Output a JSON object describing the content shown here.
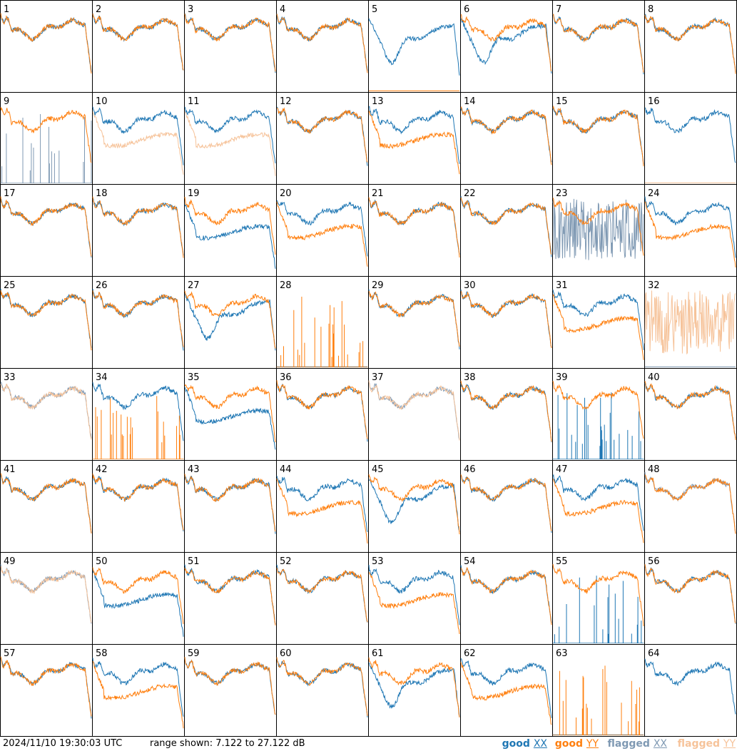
{
  "footer": {
    "timestamp": "2024/11/10 19:30:03 UTC",
    "range_text": "range shown: 7.122 to 27.122 dB"
  },
  "legend": [
    {
      "key": "good_xx",
      "label": "good",
      "pol": "XX",
      "color": "#1f77b4"
    },
    {
      "key": "good_yy",
      "label": "good",
      "pol": "YY",
      "color": "#ff7f0e"
    },
    {
      "key": "flagged_xx",
      "label": "flagged",
      "pol": "XX",
      "color": "#7f99b3"
    },
    {
      "key": "flagged_yy",
      "label": "flagged",
      "pol": "YY",
      "color": "#f6c39a"
    }
  ],
  "colors": {
    "good_xx": "#1f77b4",
    "good_yy": "#ff7f0e",
    "flagged_xx": "#7f99b3",
    "flagged_yy": "#f6c39a",
    "border": "#000000"
  },
  "chart_data": {
    "type": "line",
    "layout": "small-multiples 8x8",
    "ylim_db": [
      7.122,
      27.122
    ],
    "x": "frequency channel (unlabeled)",
    "panels": [
      {
        "id": "1",
        "xx": {
          "flag": "good",
          "shape": "std"
        },
        "yy": {
          "flag": "good",
          "shape": "std"
        }
      },
      {
        "id": "2",
        "xx": {
          "flag": "good",
          "shape": "std"
        },
        "yy": {
          "flag": "good",
          "shape": "std"
        }
      },
      {
        "id": "3",
        "xx": {
          "flag": "good",
          "shape": "std"
        },
        "yy": {
          "flag": "good",
          "shape": "std"
        }
      },
      {
        "id": "4",
        "xx": {
          "flag": "good",
          "shape": "std"
        },
        "yy": {
          "flag": "good",
          "shape": "std"
        }
      },
      {
        "id": "5",
        "xx": {
          "flag": "good",
          "shape": "dip"
        },
        "yy": {
          "flag": "good",
          "shape": "flat"
        }
      },
      {
        "id": "6",
        "xx": {
          "flag": "good",
          "shape": "dip"
        },
        "yy": {
          "flag": "good",
          "shape": "std"
        }
      },
      {
        "id": "7",
        "xx": {
          "flag": "good",
          "shape": "std"
        },
        "yy": {
          "flag": "good",
          "shape": "std"
        }
      },
      {
        "id": "8",
        "xx": {
          "flag": "good",
          "shape": "std"
        },
        "yy": {
          "flag": "good",
          "shape": "std"
        }
      },
      {
        "id": "9",
        "xx": {
          "flag": "flagged",
          "shape": "spikes"
        },
        "yy": {
          "flag": "good",
          "shape": "std"
        }
      },
      {
        "id": "10",
        "xx": {
          "flag": "good",
          "shape": "std"
        },
        "yy": {
          "flag": "flagged",
          "shape": "low"
        }
      },
      {
        "id": "11",
        "xx": {
          "flag": "good",
          "shape": "std"
        },
        "yy": {
          "flag": "flagged",
          "shape": "low"
        }
      },
      {
        "id": "12",
        "xx": {
          "flag": "good",
          "shape": "std"
        },
        "yy": {
          "flag": "good",
          "shape": "std"
        }
      },
      {
        "id": "13",
        "xx": {
          "flag": "good",
          "shape": "std"
        },
        "yy": {
          "flag": "good",
          "shape": "low"
        }
      },
      {
        "id": "14",
        "xx": {
          "flag": "good",
          "shape": "std"
        },
        "yy": {
          "flag": "good",
          "shape": "std"
        }
      },
      {
        "id": "15",
        "xx": {
          "flag": "good",
          "shape": "std"
        },
        "yy": {
          "flag": "good",
          "shape": "std"
        }
      },
      {
        "id": "16",
        "xx": {
          "flag": "good",
          "shape": "std"
        },
        "yy": {
          "flag": "flagged",
          "shape": "flat"
        }
      },
      {
        "id": "17",
        "xx": {
          "flag": "good",
          "shape": "std"
        },
        "yy": {
          "flag": "good",
          "shape": "std"
        }
      },
      {
        "id": "18",
        "xx": {
          "flag": "good",
          "shape": "std"
        },
        "yy": {
          "flag": "good",
          "shape": "std"
        }
      },
      {
        "id": "19",
        "xx": {
          "flag": "good",
          "shape": "low"
        },
        "yy": {
          "flag": "good",
          "shape": "std"
        }
      },
      {
        "id": "20",
        "xx": {
          "flag": "good",
          "shape": "std"
        },
        "yy": {
          "flag": "good",
          "shape": "low"
        }
      },
      {
        "id": "21",
        "xx": {
          "flag": "good",
          "shape": "std"
        },
        "yy": {
          "flag": "good",
          "shape": "std"
        }
      },
      {
        "id": "22",
        "xx": {
          "flag": "good",
          "shape": "std"
        },
        "yy": {
          "flag": "good",
          "shape": "std"
        }
      },
      {
        "id": "23",
        "xx": {
          "flag": "flagged",
          "shape": "noise"
        },
        "yy": {
          "flag": "good",
          "shape": "std"
        }
      },
      {
        "id": "24",
        "xx": {
          "flag": "good",
          "shape": "std"
        },
        "yy": {
          "flag": "good",
          "shape": "low"
        }
      },
      {
        "id": "25",
        "xx": {
          "flag": "good",
          "shape": "std"
        },
        "yy": {
          "flag": "good",
          "shape": "std"
        }
      },
      {
        "id": "26",
        "xx": {
          "flag": "good",
          "shape": "std"
        },
        "yy": {
          "flag": "good",
          "shape": "std"
        }
      },
      {
        "id": "27",
        "xx": {
          "flag": "good",
          "shape": "dip"
        },
        "yy": {
          "flag": "good",
          "shape": "std"
        }
      },
      {
        "id": "28",
        "xx": {
          "flag": "good",
          "shape": "flat"
        },
        "yy": {
          "flag": "good",
          "shape": "spikes"
        }
      },
      {
        "id": "29",
        "xx": {
          "flag": "good",
          "shape": "std"
        },
        "yy": {
          "flag": "good",
          "shape": "std"
        }
      },
      {
        "id": "30",
        "xx": {
          "flag": "good",
          "shape": "std"
        },
        "yy": {
          "flag": "good",
          "shape": "std"
        }
      },
      {
        "id": "31",
        "xx": {
          "flag": "good",
          "shape": "std"
        },
        "yy": {
          "flag": "good",
          "shape": "low"
        }
      },
      {
        "id": "32",
        "xx": {
          "flag": "flagged",
          "shape": "flat"
        },
        "yy": {
          "flag": "flagged",
          "shape": "noise"
        }
      },
      {
        "id": "33",
        "xx": {
          "flag": "flagged",
          "shape": "std"
        },
        "yy": {
          "flag": "flagged",
          "shape": "std"
        }
      },
      {
        "id": "34",
        "xx": {
          "flag": "good",
          "shape": "std"
        },
        "yy": {
          "flag": "good",
          "shape": "spikes"
        }
      },
      {
        "id": "35",
        "xx": {
          "flag": "good",
          "shape": "low"
        },
        "yy": {
          "flag": "good",
          "shape": "std"
        }
      },
      {
        "id": "36",
        "xx": {
          "flag": "good",
          "shape": "std"
        },
        "yy": {
          "flag": "good",
          "shape": "std"
        }
      },
      {
        "id": "37",
        "xx": {
          "flag": "flagged",
          "shape": "std"
        },
        "yy": {
          "flag": "flagged",
          "shape": "std"
        }
      },
      {
        "id": "38",
        "xx": {
          "flag": "good",
          "shape": "std"
        },
        "yy": {
          "flag": "good",
          "shape": "std"
        }
      },
      {
        "id": "39",
        "xx": {
          "flag": "good",
          "shape": "spikes"
        },
        "yy": {
          "flag": "good",
          "shape": "std"
        }
      },
      {
        "id": "40",
        "xx": {
          "flag": "good",
          "shape": "std"
        },
        "yy": {
          "flag": "good",
          "shape": "std"
        }
      },
      {
        "id": "41",
        "xx": {
          "flag": "good",
          "shape": "std"
        },
        "yy": {
          "flag": "good",
          "shape": "std"
        }
      },
      {
        "id": "42",
        "xx": {
          "flag": "good",
          "shape": "std"
        },
        "yy": {
          "flag": "good",
          "shape": "std"
        }
      },
      {
        "id": "43",
        "xx": {
          "flag": "good",
          "shape": "std"
        },
        "yy": {
          "flag": "good",
          "shape": "std"
        }
      },
      {
        "id": "44",
        "xx": {
          "flag": "good",
          "shape": "std"
        },
        "yy": {
          "flag": "good",
          "shape": "low"
        }
      },
      {
        "id": "45",
        "xx": {
          "flag": "good",
          "shape": "dip"
        },
        "yy": {
          "flag": "good",
          "shape": "std"
        }
      },
      {
        "id": "46",
        "xx": {
          "flag": "good",
          "shape": "std"
        },
        "yy": {
          "flag": "good",
          "shape": "std"
        }
      },
      {
        "id": "47",
        "xx": {
          "flag": "good",
          "shape": "std"
        },
        "yy": {
          "flag": "good",
          "shape": "low"
        }
      },
      {
        "id": "48",
        "xx": {
          "flag": "flagged",
          "shape": "std"
        },
        "yy": {
          "flag": "good",
          "shape": "std"
        }
      },
      {
        "id": "49",
        "xx": {
          "flag": "flagged",
          "shape": "std"
        },
        "yy": {
          "flag": "flagged",
          "shape": "std"
        }
      },
      {
        "id": "50",
        "xx": {
          "flag": "good",
          "shape": "low"
        },
        "yy": {
          "flag": "good",
          "shape": "std"
        }
      },
      {
        "id": "51",
        "xx": {
          "flag": "good",
          "shape": "std"
        },
        "yy": {
          "flag": "good",
          "shape": "std"
        }
      },
      {
        "id": "52",
        "xx": {
          "flag": "good",
          "shape": "std"
        },
        "yy": {
          "flag": "good",
          "shape": "std"
        }
      },
      {
        "id": "53",
        "xx": {
          "flag": "good",
          "shape": "std"
        },
        "yy": {
          "flag": "good",
          "shape": "low"
        }
      },
      {
        "id": "54",
        "xx": {
          "flag": "good",
          "shape": "std"
        },
        "yy": {
          "flag": "good",
          "shape": "std"
        }
      },
      {
        "id": "55",
        "xx": {
          "flag": "good",
          "shape": "spikes"
        },
        "yy": {
          "flag": "good",
          "shape": "std"
        }
      },
      {
        "id": "56",
        "xx": {
          "flag": "good",
          "shape": "std"
        },
        "yy": {
          "flag": "good",
          "shape": "std"
        }
      },
      {
        "id": "57",
        "xx": {
          "flag": "good",
          "shape": "std"
        },
        "yy": {
          "flag": "good",
          "shape": "std"
        }
      },
      {
        "id": "58",
        "xx": {
          "flag": "good",
          "shape": "std"
        },
        "yy": {
          "flag": "good",
          "shape": "low"
        }
      },
      {
        "id": "59",
        "xx": {
          "flag": "good",
          "shape": "std"
        },
        "yy": {
          "flag": "good",
          "shape": "std"
        }
      },
      {
        "id": "60",
        "xx": {
          "flag": "good",
          "shape": "std"
        },
        "yy": {
          "flag": "good",
          "shape": "std"
        }
      },
      {
        "id": "61",
        "xx": {
          "flag": "good",
          "shape": "dip"
        },
        "yy": {
          "flag": "good",
          "shape": "std"
        }
      },
      {
        "id": "62",
        "xx": {
          "flag": "good",
          "shape": "std"
        },
        "yy": {
          "flag": "good",
          "shape": "low"
        }
      },
      {
        "id": "63",
        "xx": {
          "flag": "good",
          "shape": "flat"
        },
        "yy": {
          "flag": "good",
          "shape": "spikes"
        }
      },
      {
        "id": "64",
        "xx": {
          "flag": "good",
          "shape": "std"
        },
        "yy": {
          "flag": "good",
          "shape": "none"
        }
      }
    ]
  }
}
